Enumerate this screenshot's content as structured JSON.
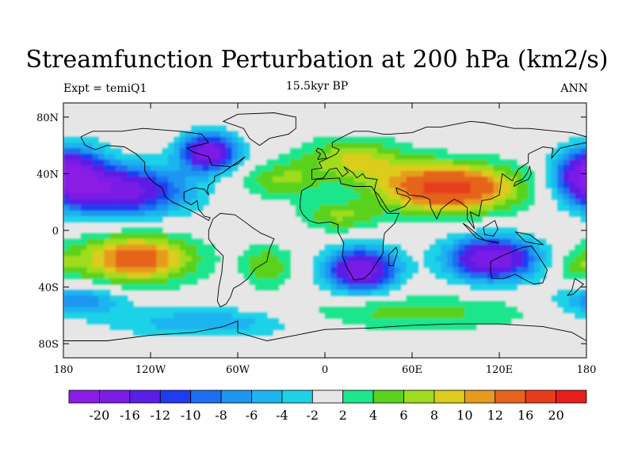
{
  "title": "Streamfunction Perturbation at 200 hPa (km2/s)",
  "left_string": "Expt = temiQ1",
  "center_string": "15.5kyr BP",
  "right_string": "ANN",
  "map": {
    "projection": "cylindrical-equidistant",
    "lon_range": [
      -180,
      180
    ],
    "lat_range": [
      -90,
      90
    ],
    "lat_ticks": [
      {
        "value": 80,
        "label": "80N"
      },
      {
        "value": 40,
        "label": "40N"
      },
      {
        "value": 0,
        "label": "0"
      },
      {
        "value": -40,
        "label": "40S"
      },
      {
        "value": -80,
        "label": "80S"
      }
    ],
    "lon_ticks": [
      {
        "value": -180,
        "label": "180"
      },
      {
        "value": -120,
        "label": "120W"
      },
      {
        "value": -60,
        "label": "60W"
      },
      {
        "value": 0,
        "label": "0"
      },
      {
        "value": 60,
        "label": "60E"
      },
      {
        "value": 120,
        "label": "120E"
      },
      {
        "value": 180,
        "label": "180"
      }
    ],
    "missing_color": "#e6e6e6",
    "field_centers": [
      {
        "lon": -80,
        "lat": 55,
        "value": -20,
        "rlon": 18,
        "rlat": 12
      },
      {
        "lon": -140,
        "lat": 28,
        "value": -18,
        "rlon": 40,
        "rlat": 16
      },
      {
        "lon": -170,
        "lat": 40,
        "value": -12,
        "rlon": 20,
        "rlat": 18
      },
      {
        "lon": 175,
        "lat": 40,
        "value": -10,
        "rlon": 18,
        "rlat": 16
      },
      {
        "lon": 85,
        "lat": 30,
        "value": 18,
        "rlon": 45,
        "rlat": 16
      },
      {
        "lon": 20,
        "lat": 50,
        "value": 8,
        "rlon": 35,
        "rlat": 14
      },
      {
        "lon": -30,
        "lat": 35,
        "value": 6,
        "rlon": 25,
        "rlat": 12
      },
      {
        "lon": 10,
        "lat": 10,
        "value": 6,
        "rlon": 25,
        "rlat": 10
      },
      {
        "lon": -130,
        "lat": -20,
        "value": 14,
        "rlon": 38,
        "rlat": 16
      },
      {
        "lon": 25,
        "lat": -28,
        "value": -20,
        "rlon": 22,
        "rlat": 14
      },
      {
        "lon": 115,
        "lat": -20,
        "value": -20,
        "rlon": 28,
        "rlat": 14
      },
      {
        "lon": -40,
        "lat": -25,
        "value": 6,
        "rlon": 16,
        "rlat": 14
      },
      {
        "lon": 60,
        "lat": -58,
        "value": 5,
        "rlon": 80,
        "rlat": 12
      },
      {
        "lon": -80,
        "lat": -65,
        "value": -6,
        "rlon": 60,
        "rlat": 10
      },
      {
        "lon": -170,
        "lat": -50,
        "value": -8,
        "rlon": 30,
        "rlat": 10
      },
      {
        "lon": 175,
        "lat": -25,
        "value": 4,
        "rlon": 15,
        "rlat": 12
      }
    ]
  },
  "colorbar": {
    "levels": [
      -20,
      -16,
      -12,
      -10,
      -8,
      -6,
      -4,
      -2,
      2,
      4,
      6,
      8,
      10,
      12,
      16,
      20
    ],
    "labels": [
      "-20",
      "-16",
      "-12",
      "-10",
      "-8",
      "-6",
      "-4",
      "-2",
      "2",
      "4",
      "6",
      "8",
      "10",
      "12",
      "16",
      "20"
    ],
    "colors": [
      "#8a1ee6",
      "#7a1ee6",
      "#5a1ee6",
      "#1e3cf0",
      "#1e6ef0",
      "#1e96f0",
      "#1eb4f0",
      "#1ed2e6",
      "#e6e6e6",
      "#1ee68c",
      "#5ad21e",
      "#a0dc1e",
      "#dccc1e",
      "#e69b1e",
      "#e6641e",
      "#e63c1e",
      "#e61e1e"
    ]
  }
}
